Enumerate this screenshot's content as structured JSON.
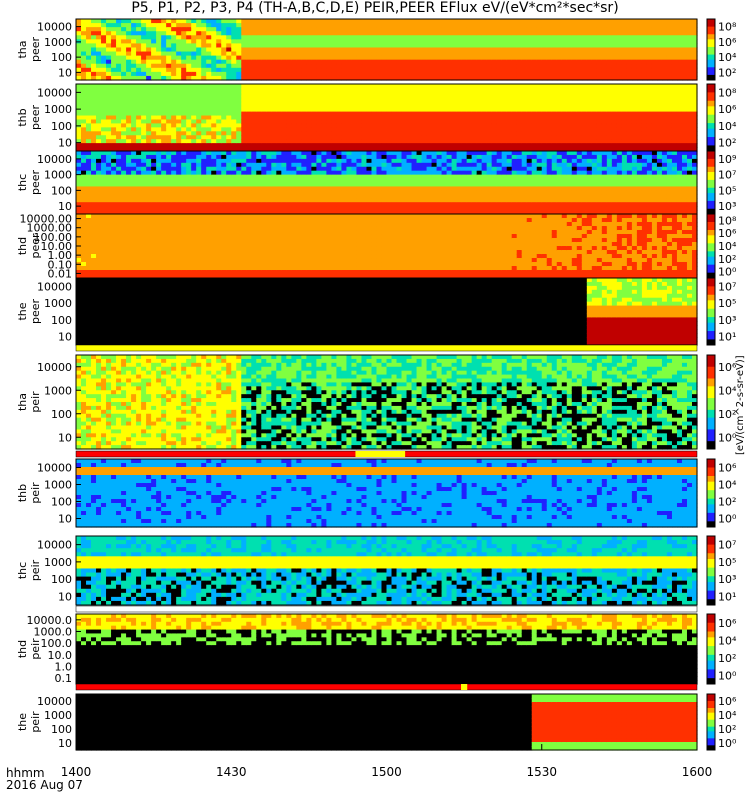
{
  "title": "P5, P1, P2, P3, P4 (TH-A,B,C,D,E) PEIR,PEER EFlux eV/(eV*cm²*sec*sr)",
  "footer": {
    "line1": "hhmm",
    "line2": "2016 Aug 07"
  },
  "colorbar_unit": "[eV/(cm^2-s-sr-eV)]",
  "chart_data": {
    "type": "heatmap",
    "xaxis": {
      "label": "hhmm",
      "date": "2016 Aug 07",
      "range": [
        1400,
        1600
      ],
      "ticks": [
        "1400",
        "1430",
        "1500",
        "1530",
        "1600"
      ]
    },
    "panels": [
      {
        "probe": "tha",
        "species": "peer",
        "ylabel": [
          "tha",
          "peer"
        ],
        "yscale": "log",
        "yticks": [
          "10",
          "100",
          "1000",
          "10000"
        ],
        "cbar_ticks": [
          "10⁸",
          "10⁶",
          "10⁴",
          "10²"
        ]
      },
      {
        "probe": "thb",
        "species": "peer",
        "ylabel": [
          "thb",
          "peer"
        ],
        "yscale": "log",
        "yticks": [
          "10",
          "100",
          "1000",
          "10000"
        ],
        "cbar_ticks": [
          "10⁸",
          "10⁶",
          "10⁴",
          "10²"
        ]
      },
      {
        "probe": "thc",
        "species": "peer",
        "ylabel": [
          "thc",
          "peer"
        ],
        "yscale": "log",
        "yticks": [
          "10",
          "100",
          "1000",
          "10000"
        ],
        "cbar_ticks": [
          "10⁹",
          "10⁷",
          "10⁵",
          "10³"
        ]
      },
      {
        "probe": "thd",
        "species": "peer",
        "ylabel": [
          "thd",
          "peer"
        ],
        "yscale": "log",
        "yticks": [
          "0.01",
          "0.10",
          "1.00",
          "10.00",
          "100.00",
          "1000.00",
          "10000.00"
        ],
        "cbar_ticks": [
          "10⁸",
          "10⁶",
          "10⁴",
          "10²",
          "10⁰"
        ]
      },
      {
        "probe": "the",
        "species": "peer",
        "ylabel": [
          "the",
          "peer"
        ],
        "yscale": "log",
        "yticks": [
          "10",
          "100",
          "1000",
          "10000"
        ],
        "cbar_ticks": [
          "10⁷",
          "10⁵",
          "10³",
          "10¹"
        ]
      },
      {
        "probe": "tha",
        "species": "peir",
        "ylabel": [
          "tha",
          "peir"
        ],
        "yscale": "log",
        "yticks": [
          "10",
          "100",
          "1000",
          "10000"
        ],
        "cbar_ticks": [
          "10⁶",
          "10⁴",
          "10²",
          "10⁰"
        ]
      },
      {
        "probe": "thb",
        "species": "peir",
        "ylabel": [
          "thb",
          "peir"
        ],
        "yscale": "log",
        "yticks": [
          "10",
          "100",
          "1000",
          "10000"
        ],
        "cbar_ticks": [
          "10⁶",
          "10⁴",
          "10²",
          "10⁰"
        ]
      },
      {
        "probe": "thc",
        "species": "peir",
        "ylabel": [
          "thc",
          "peir"
        ],
        "yscale": "log",
        "yticks": [
          "10",
          "100",
          "1000",
          "10000"
        ],
        "cbar_ticks": [
          "10⁷",
          "10⁵",
          "10³",
          "10¹"
        ]
      },
      {
        "probe": "thd",
        "species": "peir",
        "ylabel": [
          "thd",
          "peir"
        ],
        "yscale": "log",
        "yticks": [
          "0.1",
          "1.0",
          "10.0",
          "100.0",
          "1000.0",
          "10000.0"
        ],
        "cbar_ticks": [
          "10⁶",
          "10⁴",
          "10²",
          "10⁰"
        ]
      },
      {
        "probe": "the",
        "species": "peir",
        "ylabel": [
          "the",
          "peir"
        ],
        "yscale": "log",
        "yticks": [
          "10",
          "100",
          "1000",
          "10000"
        ],
        "cbar_ticks": [
          "10⁶",
          "10⁴",
          "10²",
          "10⁰"
        ]
      }
    ],
    "colormap": [
      "#000000",
      "#2020ff",
      "#00b0ff",
      "#00e0b0",
      "#80ff40",
      "#ffff00",
      "#ffa000",
      "#ff3000",
      "#c00000"
    ]
  }
}
